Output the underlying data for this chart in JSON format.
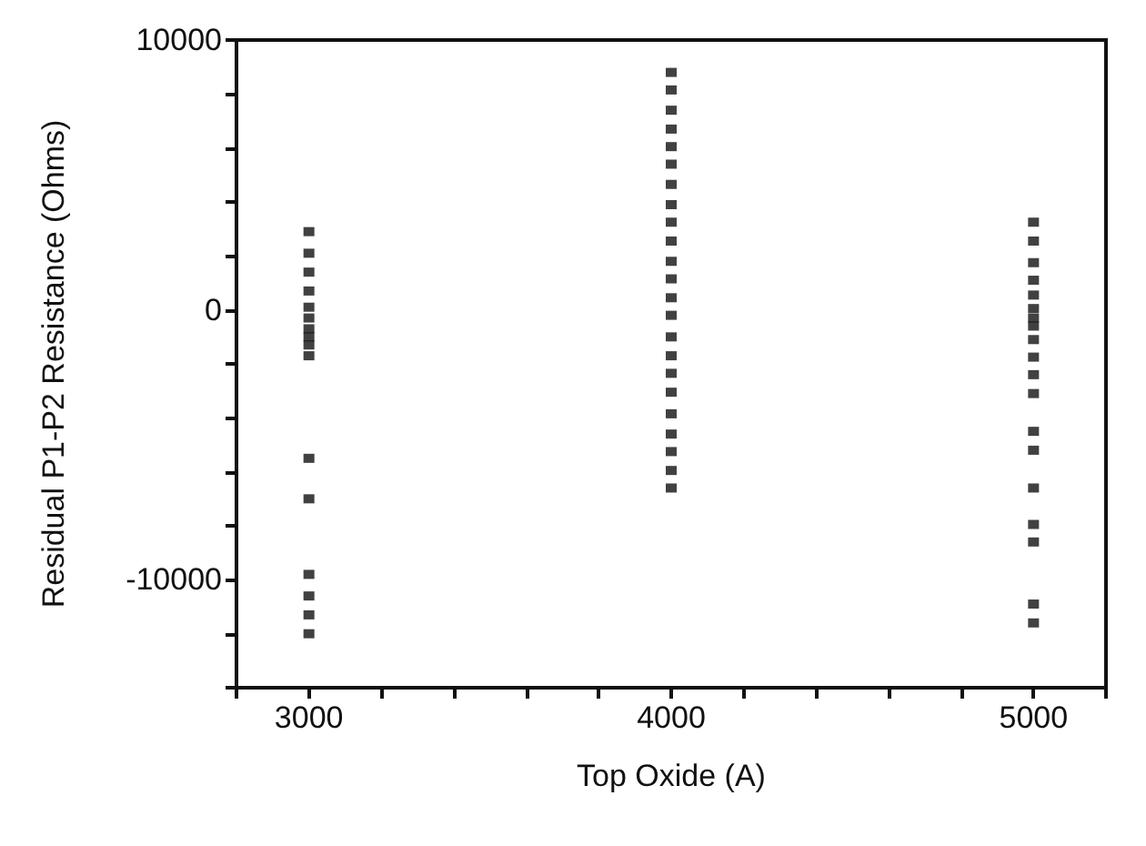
{
  "chart_data": {
    "type": "scatter",
    "xlabel": "Top Oxide (A)",
    "ylabel": "Residual P1-P2 Resistance (Ohms)",
    "x": [
      3000,
      3000,
      3000,
      3000,
      3000,
      3000,
      3000,
      3000,
      3000,
      3000,
      3000,
      3000,
      3000,
      3000,
      3000,
      3000,
      4000,
      4000,
      4000,
      4000,
      4000,
      4000,
      4000,
      4000,
      4000,
      4000,
      4000,
      4000,
      4000,
      4000,
      4000,
      4000,
      4000,
      4000,
      4000,
      4000,
      4000,
      4000,
      4000,
      5000,
      5000,
      5000,
      5000,
      5000,
      5000,
      5000,
      5000,
      5000,
      5000,
      5000,
      5000,
      5000,
      5000,
      5000,
      5000,
      5000,
      5000,
      5000
    ],
    "values": [
      2900,
      2100,
      1400,
      700,
      100,
      -300,
      -700,
      -1000,
      -1300,
      -1700,
      -5500,
      -7000,
      -9800,
      -10600,
      -11300,
      -12000,
      8800,
      8150,
      7400,
      6700,
      6050,
      5400,
      4650,
      3900,
      3250,
      2550,
      1800,
      1150,
      450,
      -200,
      -1000,
      -1700,
      -2350,
      -3050,
      -3850,
      -4600,
      -5250,
      -5950,
      -6600,
      3250,
      2550,
      1750,
      1100,
      550,
      50,
      -300,
      -600,
      -1100,
      -1750,
      -2400,
      -3100,
      -4500,
      -5200,
      -6600,
      -7950,
      -8600,
      -10900,
      -11600
    ],
    "color": "#111111",
    "marker": "square",
    "xlim": [
      2800,
      5200
    ],
    "xticks": [
      {
        "value": 2800,
        "label": null
      },
      3000,
      {
        "value": 3200,
        "label": null
      },
      {
        "value": 3400,
        "label": null
      },
      {
        "value": 3600,
        "label": null
      },
      {
        "value": 3800,
        "label": null
      },
      4000,
      {
        "value": 4200,
        "label": null
      },
      {
        "value": 4400,
        "label": null
      },
      {
        "value": 4600,
        "label": null
      },
      {
        "value": 4800,
        "label": null
      },
      5000,
      {
        "value": 5200,
        "label": null
      }
    ],
    "ylim": [
      -14000,
      10000
    ],
    "yticks": [
      {
        "value": -14000,
        "label": null
      },
      {
        "value": -12000,
        "label": null
      },
      -10000,
      {
        "value": -8000,
        "label": null
      },
      {
        "value": -6000,
        "label": null
      },
      {
        "value": -4000,
        "label": null
      },
      {
        "value": -2000,
        "label": null
      },
      0,
      {
        "value": 2000,
        "label": null
      },
      {
        "value": 4000,
        "label": null
      },
      {
        "value": 6000,
        "label": null
      },
      {
        "value": 8000,
        "label": null
      },
      10000
    ],
    "grid": false
  }
}
